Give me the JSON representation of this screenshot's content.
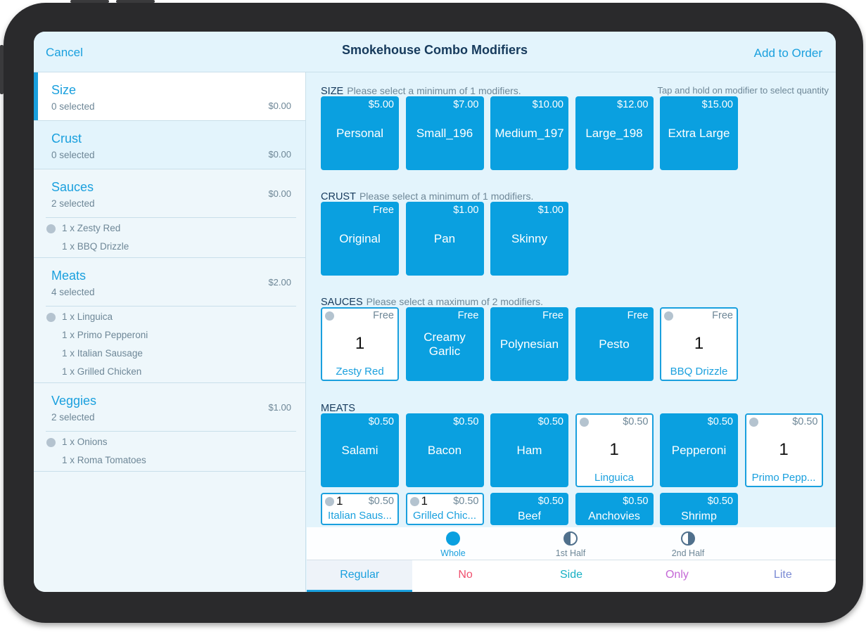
{
  "header": {
    "cancel": "Cancel",
    "title": "Smokehouse Combo Modifiers",
    "add": "Add to Order"
  },
  "sidebar": {
    "categories": [
      {
        "name": "Size",
        "count": "0 selected",
        "price": "$0.00",
        "items": []
      },
      {
        "name": "Crust",
        "count": "0 selected",
        "price": "$0.00",
        "items": []
      },
      {
        "name": "Sauces",
        "count": "2 selected",
        "price": "$0.00",
        "items": [
          "1 x Zesty Red",
          "1 x BBQ Drizzle"
        ]
      },
      {
        "name": "Meats",
        "count": "4 selected",
        "price": "$2.00",
        "items": [
          "1 x Linguica",
          "1 x Primo Pepperoni",
          "1 x Italian Sausage",
          "1 x Grilled Chicken"
        ]
      },
      {
        "name": "Veggies",
        "count": "2 selected",
        "price": "$1.00",
        "items": [
          "1 x Onions",
          "1 x Roma Tomatoes"
        ]
      }
    ]
  },
  "main": {
    "hint": "Tap and hold on modifier to select quantity",
    "sections": [
      {
        "title": "SIZE",
        "rule": "Please select a minimum of 1 modifiers.",
        "tiles": [
          {
            "name": "Personal",
            "price": "$5.00"
          },
          {
            "name": "Small_196",
            "price": "$7.00"
          },
          {
            "name": "Medium_197",
            "price": "$10.00"
          },
          {
            "name": "Large_198",
            "price": "$12.00"
          },
          {
            "name": "Extra Large",
            "price": "$15.00"
          }
        ]
      },
      {
        "title": "CRUST",
        "rule": "Please select a minimum of 1 modifiers.",
        "tiles": [
          {
            "name": "Original",
            "price": "Free"
          },
          {
            "name": "Pan",
            "price": "$1.00"
          },
          {
            "name": "Skinny",
            "price": "$1.00"
          }
        ]
      },
      {
        "title": "SAUCES",
        "rule": "Please select a maximum of 2 modifiers.",
        "tiles": [
          {
            "name": "Zesty Red",
            "price": "Free",
            "qty": "1"
          },
          {
            "name": "Creamy Garlic",
            "price": "Free"
          },
          {
            "name": "Polynesian",
            "price": "Free"
          },
          {
            "name": "Pesto",
            "price": "Free"
          },
          {
            "name": "BBQ Drizzle",
            "price": "Free",
            "qty": "1"
          }
        ]
      },
      {
        "title": "MEATS",
        "rule": "",
        "tiles": [
          {
            "name": "Salami",
            "price": "$0.50"
          },
          {
            "name": "Bacon",
            "price": "$0.50"
          },
          {
            "name": "Ham",
            "price": "$0.50"
          },
          {
            "name": "Linguica",
            "price": "$0.50",
            "qty": "1"
          },
          {
            "name": "Pepperoni",
            "price": "$0.50"
          },
          {
            "name": "Primo Pepp...",
            "price": "$0.50",
            "qty": "1"
          },
          {
            "name": "Italian Saus...",
            "price": "$0.50",
            "qty": "1"
          },
          {
            "name": "Grilled Chic...",
            "price": "$0.50",
            "qty": "1"
          },
          {
            "name": "Beef",
            "price": "$0.50"
          },
          {
            "name": "Anchovies",
            "price": "$0.50"
          },
          {
            "name": "Shrimp",
            "price": "$0.50"
          }
        ]
      }
    ]
  },
  "portions": [
    {
      "label": "Whole",
      "icon": "whole-circle-icon"
    },
    {
      "label": "1st Half",
      "icon": "first-half-icon"
    },
    {
      "label": "2nd Half",
      "icon": "second-half-icon"
    }
  ],
  "tabs": [
    {
      "label": "Regular",
      "color": "#1aa0de"
    },
    {
      "label": "No",
      "color": "#f0506e"
    },
    {
      "label": "Side",
      "color": "#17b0c4"
    },
    {
      "label": "Only",
      "color": "#c468d6"
    },
    {
      "label": "Lite",
      "color": "#7a8ad4"
    }
  ]
}
